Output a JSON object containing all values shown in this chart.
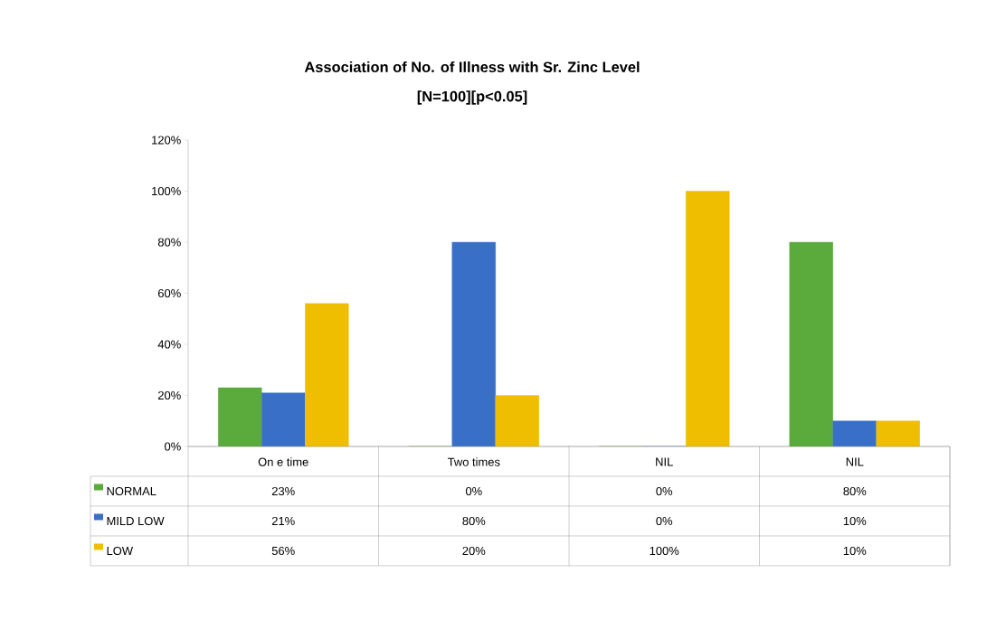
{
  "chart_data": {
    "type": "bar",
    "title": "Association of No. of Illness with Sr. Zinc Level",
    "subtitle": "[N=100][p<0.05]",
    "categories": [
      "On e time",
      "Two times",
      "NIL",
      "NIL"
    ],
    "series": [
      {
        "name": "NORMAL",
        "color": "#5aaa3c",
        "values": [
          23,
          0,
          0,
          80
        ],
        "value_labels": [
          "23%",
          "0%",
          "0%",
          "80%"
        ]
      },
      {
        "name": "MILD LOW",
        "color": "#3a6fc8",
        "values": [
          21,
          80,
          0,
          10
        ],
        "value_labels": [
          "21%",
          "80%",
          "0%",
          "10%"
        ]
      },
      {
        "name": "LOW",
        "color": "#f0be00",
        "values": [
          56,
          20,
          100,
          10
        ],
        "value_labels": [
          "56%",
          "20%",
          "100%",
          "10%"
        ]
      }
    ],
    "ylim": [
      0,
      120
    ],
    "yticks": [
      {
        "value": 0,
        "label": "0%"
      },
      {
        "value": 20,
        "label": "20%"
      },
      {
        "value": 40,
        "label": "40%"
      },
      {
        "value": 60,
        "label": "60%"
      },
      {
        "value": 80,
        "label": "80%"
      },
      {
        "value": 100,
        "label": "100%"
      },
      {
        "value": 120,
        "label": "120%"
      }
    ],
    "legend": "bottom",
    "grid": false
  }
}
